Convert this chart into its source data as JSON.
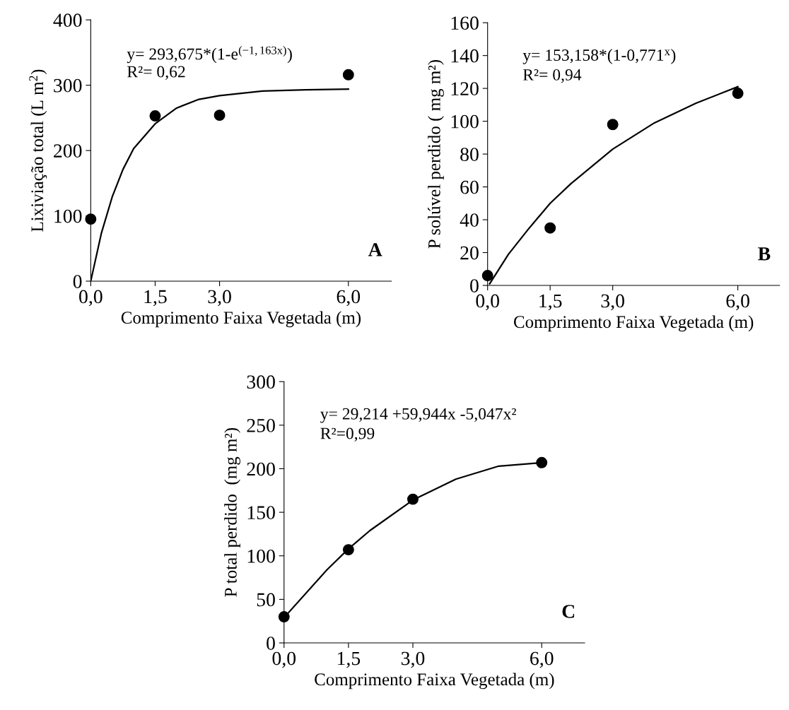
{
  "chart_data": [
    {
      "type": "scatter",
      "xlabel": "Comprimento Faixa Vegetada (m)",
      "ylabel": "Lixiviação total (L m$^{2}$)",
      "xlim": [
        0,
        7
      ],
      "xticks": [
        {
          "value": 0,
          "label": "0,0"
        },
        {
          "value": 1.5,
          "label": "1,5"
        },
        {
          "value": 3,
          "label": "3,0"
        },
        {
          "value": 6,
          "label": "6,0"
        }
      ],
      "ylim": [
        0,
        400
      ],
      "yticks": [
        0,
        100,
        200,
        300,
        400
      ],
      "grid": false,
      "legend": false,
      "series": [
        {
          "color": "#000000",
          "marker": "circle",
          "x": [
            0,
            1.5,
            3,
            6
          ],
          "values": [
            95,
            253,
            254,
            316
          ]
        },
        {
          "type": "line",
          "color": "#000000",
          "marker": "none",
          "line_style": "solid",
          "x": [
            0,
            0.25,
            0.5,
            0.75,
            1,
            1.5,
            2,
            2.5,
            3,
            4,
            5,
            6
          ],
          "values": [
            0,
            74,
            129,
            171,
            203,
            241,
            265,
            278,
            284,
            291,
            293,
            294
          ]
        }
      ],
      "annotations": [
        "y= 293,675*(1-e$^{(−1,163x)}$)",
        "R²= 0,62",
        "A"
      ]
    },
    {
      "type": "scatter",
      "xlabel": "Comprimento Faixa Vegetada (m)",
      "ylabel": "P solúvel perdido ( mg m²)",
      "xlim": [
        0,
        7
      ],
      "xticks": [
        {
          "value": 0,
          "label": "0,0"
        },
        {
          "value": 1.5,
          "label": "1,5"
        },
        {
          "value": 3,
          "label": "3,0"
        },
        {
          "value": 6,
          "label": "6,0"
        }
      ],
      "ylim": [
        0,
        160
      ],
      "yticks": [
        0,
        20,
        40,
        60,
        80,
        100,
        120,
        140,
        160
      ],
      "grid": false,
      "legend": false,
      "series": [
        {
          "color": "#000000",
          "marker": "circle",
          "x": [
            0,
            1.5,
            3,
            6
          ],
          "values": [
            6,
            35,
            98,
            117
          ]
        },
        {
          "type": "line",
          "color": "#000000",
          "marker": "none",
          "line_style": "solid",
          "x": [
            0.05,
            0.5,
            1,
            1.5,
            2,
            3,
            4,
            5,
            6
          ],
          "values": [
            1,
            19,
            35,
            50,
            62,
            83,
            99,
            111,
            121
          ]
        }
      ],
      "annotations": [
        "y= 153,158*(1-0,771$^{x}$)",
        "R²= 0,94",
        "B"
      ]
    },
    {
      "type": "scatter",
      "xlabel": "Comprimento Faixa Vegetada (m)",
      "ylabel": "P total perdido  (mg m²)",
      "xlim": [
        0,
        7
      ],
      "xticks": [
        {
          "value": 0,
          "label": "0,0"
        },
        {
          "value": 1.5,
          "label": "1,5"
        },
        {
          "value": 3,
          "label": "3,0"
        },
        {
          "value": 6,
          "label": "6,0"
        }
      ],
      "ylim": [
        0,
        300
      ],
      "yticks": [
        0,
        50,
        100,
        150,
        200,
        250,
        300
      ],
      "grid": false,
      "legend": false,
      "series": [
        {
          "color": "#000000",
          "marker": "circle",
          "x": [
            0,
            1.5,
            3,
            6
          ],
          "values": [
            30,
            107,
            165,
            207
          ]
        },
        {
          "type": "line",
          "color": "#000000",
          "marker": "none",
          "line_style": "solid",
          "x": [
            0,
            1,
            1.5,
            2,
            3,
            4,
            5,
            6
          ],
          "values": [
            29,
            84,
            108,
            129,
            164,
            188,
            203,
            207
          ]
        }
      ],
      "annotations": [
        "y= 29,214 +59,944x -5,047x²",
        "R²=0,99",
        "C"
      ]
    }
  ]
}
